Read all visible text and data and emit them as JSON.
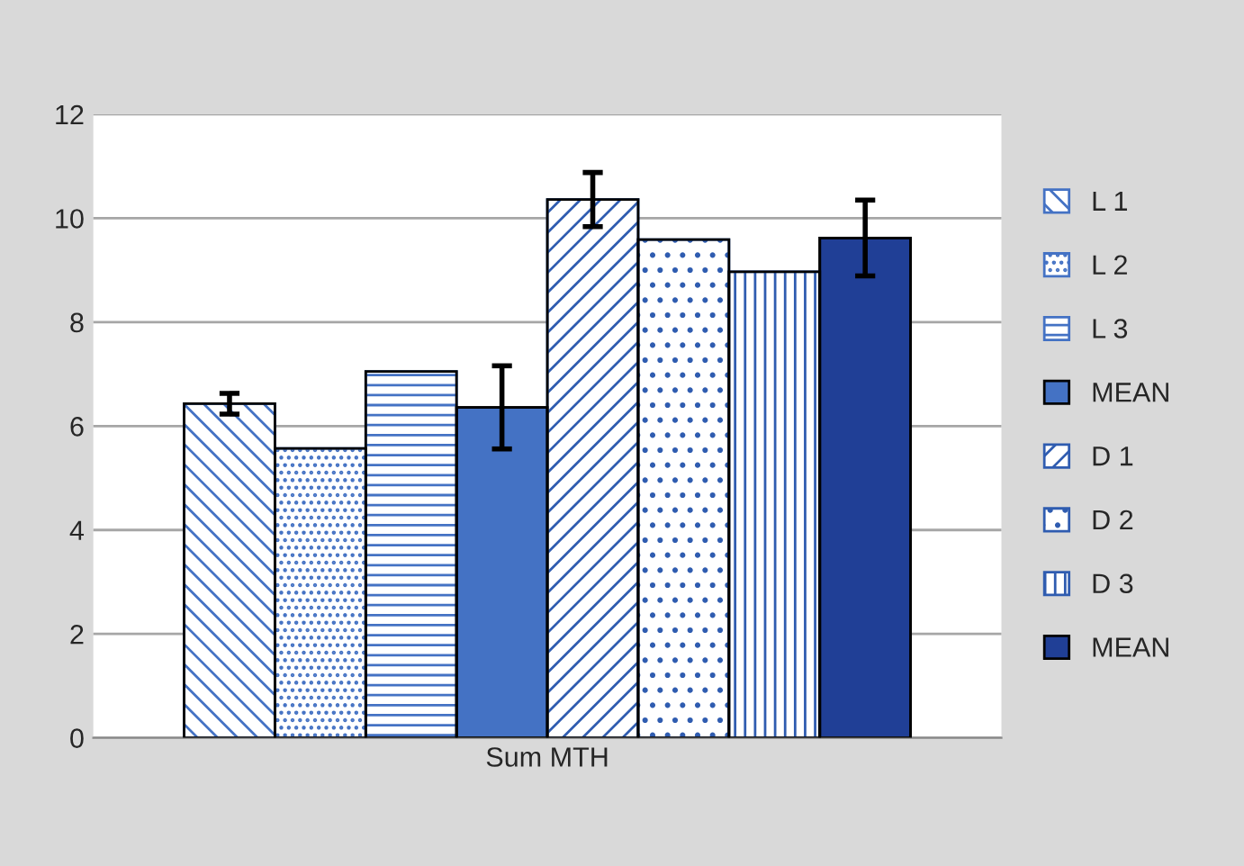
{
  "chart_data": {
    "type": "bar",
    "categories": [
      "Sum MTH"
    ],
    "series": [
      {
        "name": "L 1",
        "color": "#4472c4",
        "values": [
          6.43
        ],
        "errors": [
          0.2
        ]
      },
      {
        "name": "L 2",
        "color": "#4472c4",
        "values": [
          5.57
        ]
      },
      {
        "name": "L 3",
        "color": "#4472c4",
        "values": [
          7.05
        ]
      },
      {
        "name": "MEAN",
        "color": "#4472c4",
        "values": [
          6.36
        ],
        "errors": [
          0.8
        ]
      },
      {
        "name": "D 1",
        "color": "#2f5cb0",
        "values": [
          10.36
        ],
        "errors": [
          0.52
        ]
      },
      {
        "name": "D 2",
        "color": "#2f5cb0",
        "values": [
          9.59
        ]
      },
      {
        "name": "D 3",
        "color": "#2f5cb0",
        "values": [
          8.97
        ]
      },
      {
        "name": "MEAN",
        "color": "#203f96",
        "values": [
          9.62
        ],
        "errors": [
          0.73
        ]
      }
    ],
    "ylim": [
      0,
      12
    ],
    "yticks": [
      0,
      2,
      4,
      6,
      8,
      10,
      12
    ],
    "grid": "y",
    "legend": "right"
  }
}
